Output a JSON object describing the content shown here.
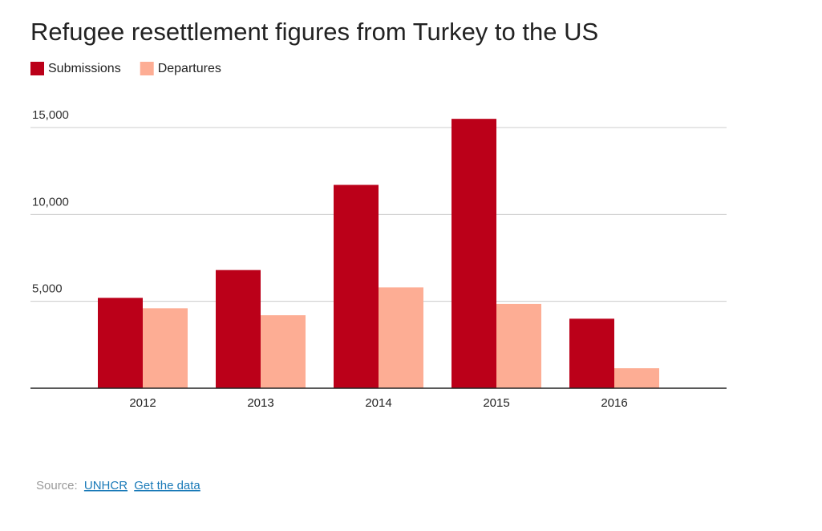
{
  "chart_data": {
    "type": "grouped-bar",
    "title": "Refugee resettlement figures from Turkey to the US",
    "categories": [
      "2012",
      "2013",
      "2014",
      "2015",
      "2016"
    ],
    "series": [
      {
        "name": "Submissions",
        "color": "#bb0019",
        "values": [
          5200,
          6800,
          11700,
          15500,
          4000
        ]
      },
      {
        "name": "Departures",
        "color": "#fdad94",
        "values": [
          4600,
          4200,
          5800,
          4850,
          1150
        ]
      }
    ],
    "ylim": [
      0,
      16000
    ],
    "yticks": [
      {
        "value": 5000,
        "label": "5,000"
      },
      {
        "value": 10000,
        "label": "10,000"
      },
      {
        "value": 15000,
        "label": "15,000"
      }
    ],
    "grid": true,
    "source": {
      "label": "Source:",
      "links": [
        "UNHCR",
        "Get the data"
      ]
    }
  }
}
